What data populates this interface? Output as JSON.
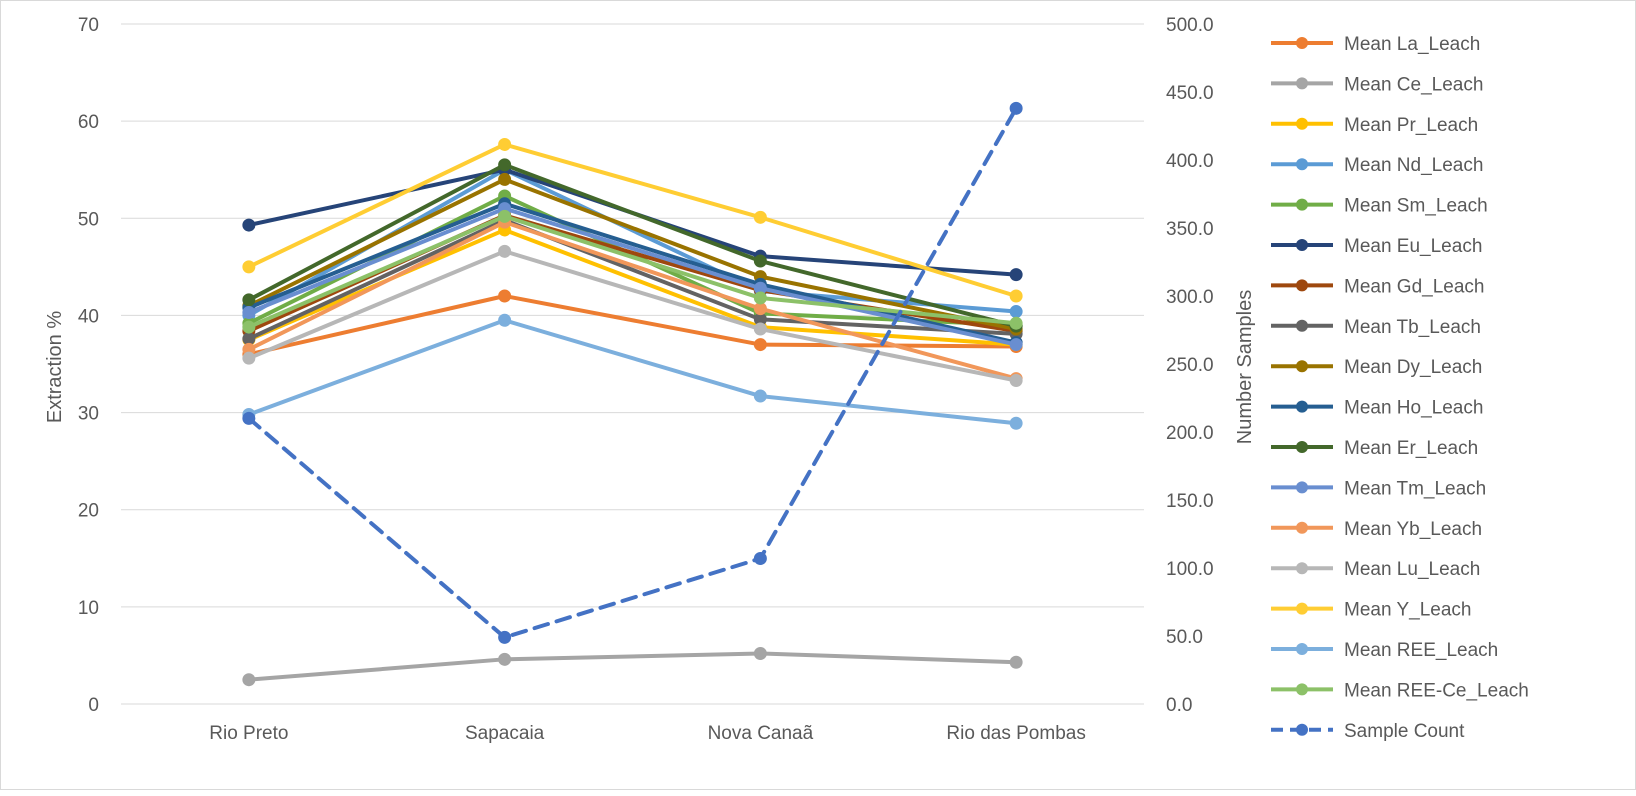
{
  "chart_data": {
    "type": "line",
    "categories": [
      "Rio Preto",
      "Sapacaia",
      "Nova Canaã",
      "Rio das Pombas"
    ],
    "ylabel": "Extraction %",
    "y2label": "Number Samples",
    "ylim": [
      0,
      70
    ],
    "y2lim": [
      0,
      500
    ],
    "yticks": [
      "0",
      "10",
      "20",
      "30",
      "40",
      "50",
      "60",
      "70"
    ],
    "y2ticks": [
      "0.0",
      "50.0",
      "100.0",
      "150.0",
      "200.0",
      "250.0",
      "300.0",
      "350.0",
      "400.0",
      "450.0",
      "500.0"
    ],
    "grid": true,
    "legend_position": "right",
    "series": [
      {
        "name": "Mean La_Leach",
        "color": "#ED7D31",
        "values": [
          36.0,
          42.0,
          37.0,
          36.8
        ]
      },
      {
        "name": "Mean Ce_Leach",
        "color": "#A5A5A5",
        "values": [
          2.5,
          4.6,
          5.2,
          4.3
        ]
      },
      {
        "name": "Mean Pr_Leach",
        "color": "#FFC000",
        "values": [
          37.5,
          48.8,
          38.8,
          37.0
        ]
      },
      {
        "name": "Mean Nd_Leach",
        "color": "#5B9BD5",
        "values": [
          40.0,
          55.0,
          42.5,
          40.4
        ]
      },
      {
        "name": "Mean Sm_Leach",
        "color": "#70AD47",
        "values": [
          39.2,
          52.3,
          40.2,
          39.0
        ]
      },
      {
        "name": "Mean Eu_Leach",
        "color": "#264478",
        "values": [
          49.3,
          55.0,
          46.1,
          44.2
        ]
      },
      {
        "name": "Mean Gd_Leach",
        "color": "#9E480E",
        "values": [
          38.4,
          50.3,
          42.6,
          38.4
        ]
      },
      {
        "name": "Mean Tb_Leach",
        "color": "#636363",
        "values": [
          37.6,
          49.8,
          39.6,
          38.1
        ]
      },
      {
        "name": "Mean Dy_Leach",
        "color": "#997300",
        "values": [
          41.0,
          54.0,
          44.0,
          38.6
        ]
      },
      {
        "name": "Mean Ho_Leach",
        "color": "#255E91",
        "values": [
          40.8,
          51.5,
          43.2,
          37.2
        ]
      },
      {
        "name": "Mean Er_Leach",
        "color": "#43682B",
        "values": [
          41.6,
          55.5,
          45.6,
          38.9
        ]
      },
      {
        "name": "Mean Tm_Leach",
        "color": "#698ED0",
        "values": [
          40.3,
          51.0,
          42.8,
          37.0
        ]
      },
      {
        "name": "Mean Yb_Leach",
        "color": "#F1975A",
        "values": [
          36.5,
          49.6,
          40.7,
          33.5
        ]
      },
      {
        "name": "Mean Lu_Leach",
        "color": "#B7B7B7",
        "values": [
          35.6,
          46.6,
          38.6,
          33.3
        ]
      },
      {
        "name": "Mean Y_Leach",
        "color": "#FFCD33",
        "values": [
          45.0,
          57.6,
          50.1,
          42.0
        ]
      },
      {
        "name": "Mean REE_Leach",
        "color": "#7CAFDD",
        "values": [
          29.8,
          39.5,
          31.7,
          28.9
        ]
      },
      {
        "name": "Mean REE-Ce_Leach",
        "color": "#8CC168",
        "values": [
          38.8,
          50.2,
          41.8,
          39.2
        ]
      },
      {
        "name": "Sample Count",
        "color": "#4472C4",
        "axis": "secondary",
        "dashed": true,
        "values": [
          210,
          49,
          107,
          438
        ]
      }
    ]
  }
}
